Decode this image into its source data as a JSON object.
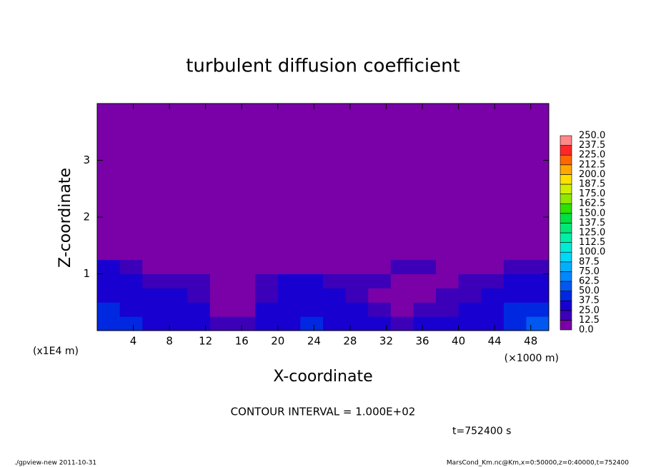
{
  "chart_data": {
    "type": "heatmap",
    "title": "turbulent diffusion coefficient",
    "x_label": "X-coordinate",
    "y_label": "Z-coordinate",
    "x_unit": "(×1000 m)",
    "y_unit": "(x1E4 m)",
    "xlim": [
      0,
      50
    ],
    "ylim": [
      0,
      4
    ],
    "xticks": [
      4,
      8,
      12,
      16,
      20,
      24,
      28,
      32,
      36,
      40,
      44,
      48
    ],
    "yticks": [
      1,
      2,
      3
    ],
    "xbins": [
      0,
      2.5,
      5,
      7.5,
      10,
      12.5,
      15,
      17.5,
      20,
      22.5,
      25,
      27.5,
      30,
      32.5,
      35,
      37.5,
      40,
      42.5,
      45,
      47.5,
      50
    ],
    "ybins": [
      0,
      0.25,
      0.5,
      0.75,
      1,
      1.25,
      1.5,
      1.75,
      2,
      2.25,
      2.5,
      2.75,
      3,
      3.25,
      3.5,
      3.75,
      4
    ],
    "z": [
      [
        45,
        40,
        35,
        30,
        25,
        20,
        15,
        25,
        35,
        40,
        35,
        30,
        25,
        20,
        25,
        30,
        30,
        35,
        45,
        60
      ],
      [
        40,
        35,
        30,
        30,
        25,
        10,
        5,
        25,
        35,
        30,
        30,
        25,
        20,
        10,
        15,
        20,
        25,
        30,
        40,
        45
      ],
      [
        35,
        30,
        25,
        25,
        20,
        5,
        5,
        20,
        30,
        30,
        25,
        15,
        10,
        5,
        10,
        15,
        20,
        25,
        30,
        35
      ],
      [
        30,
        25,
        20,
        20,
        15,
        5,
        5,
        15,
        25,
        25,
        20,
        20,
        15,
        10,
        10,
        10,
        15,
        20,
        25,
        30
      ],
      [
        25,
        20,
        10,
        5,
        5,
        0,
        0,
        5,
        10,
        5,
        5,
        5,
        10,
        15,
        15,
        10,
        10,
        10,
        15,
        20
      ],
      [
        0,
        0,
        0,
        0,
        0,
        0,
        0,
        0,
        0,
        0,
        0,
        0,
        0,
        0,
        0,
        0,
        0,
        0,
        0,
        0
      ],
      [
        0,
        0,
        0,
        0,
        0,
        0,
        0,
        0,
        0,
        0,
        0,
        0,
        0,
        0,
        0,
        0,
        0,
        0,
        0,
        0
      ],
      [
        0,
        0,
        0,
        0,
        0,
        0,
        0,
        0,
        0,
        0,
        0,
        0,
        0,
        0,
        0,
        0,
        0,
        0,
        0,
        0
      ],
      [
        0,
        0,
        0,
        0,
        0,
        0,
        0,
        0,
        0,
        0,
        0,
        0,
        0,
        0,
        0,
        0,
        0,
        0,
        0,
        0
      ],
      [
        0,
        0,
        0,
        0,
        0,
        0,
        0,
        0,
        0,
        0,
        0,
        0,
        0,
        0,
        0,
        0,
        0,
        0,
        0,
        0
      ],
      [
        0,
        0,
        0,
        0,
        0,
        0,
        0,
        0,
        0,
        0,
        0,
        0,
        0,
        0,
        0,
        0,
        0,
        0,
        0,
        0
      ],
      [
        0,
        0,
        0,
        0,
        0,
        0,
        0,
        0,
        0,
        0,
        0,
        0,
        0,
        0,
        0,
        0,
        0,
        0,
        0,
        0
      ],
      [
        0,
        0,
        0,
        0,
        0,
        0,
        0,
        0,
        0,
        0,
        0,
        0,
        0,
        0,
        0,
        0,
        0,
        0,
        0,
        0
      ],
      [
        0,
        0,
        0,
        0,
        0,
        0,
        0,
        0,
        0,
        0,
        0,
        0,
        0,
        0,
        0,
        0,
        0,
        0,
        0,
        0
      ],
      [
        0,
        0,
        0,
        0,
        0,
        0,
        0,
        0,
        0,
        0,
        0,
        0,
        0,
        0,
        0,
        0,
        0,
        0,
        0,
        0
      ],
      [
        0,
        0,
        0,
        0,
        0,
        0,
        0,
        0,
        0,
        0,
        0,
        0,
        0,
        0,
        0,
        0,
        0,
        0,
        0,
        0
      ]
    ],
    "colorbar": {
      "levels": [
        {
          "value": 0,
          "label": "0.0"
        },
        {
          "value": 12.5,
          "label": "12.5"
        },
        {
          "value": 25,
          "label": "25.0"
        },
        {
          "value": 37.5,
          "label": "37.5"
        },
        {
          "value": 50,
          "label": "50.0"
        },
        {
          "value": 62.5,
          "label": "62.5"
        },
        {
          "value": 75,
          "label": "75.0"
        },
        {
          "value": 87.5,
          "label": "87.5"
        },
        {
          "value": 100,
          "label": "100.0"
        },
        {
          "value": 112.5,
          "label": "112.5"
        },
        {
          "value": 125,
          "label": "125.0"
        },
        {
          "value": 137.5,
          "label": "137.5"
        },
        {
          "value": 150,
          "label": "150.0"
        },
        {
          "value": 162.5,
          "label": "162.5"
        },
        {
          "value": 175,
          "label": "175.0"
        },
        {
          "value": 187.5,
          "label": "187.5"
        },
        {
          "value": 200,
          "label": "200.0"
        },
        {
          "value": 212.5,
          "label": "212.5"
        },
        {
          "value": 225,
          "label": "225.0"
        },
        {
          "value": 237.5,
          "label": "237.5"
        },
        {
          "value": 250,
          "label": "250.0"
        }
      ],
      "colors": [
        "#7a00a8",
        "#3c00b8",
        "#1800d0",
        "#0028e0",
        "#0058f0",
        "#0088ff",
        "#00b0ff",
        "#00d8f8",
        "#00ecd8",
        "#00f0a8",
        "#00e878",
        "#00e040",
        "#30e000",
        "#90e800",
        "#d0f000",
        "#ffe000",
        "#ffa800",
        "#ff6800",
        "#ff2828",
        "#ff8888"
      ]
    },
    "contour_note": "CONTOUR INTERVAL = 1.000E+02",
    "time_label": "t=752400 s",
    "footer_left": "./gpview-new  2011-10-31",
    "footer_right": "MarsCond_Km.nc@Km,x=0:50000,z=0:40000,t=752400"
  }
}
